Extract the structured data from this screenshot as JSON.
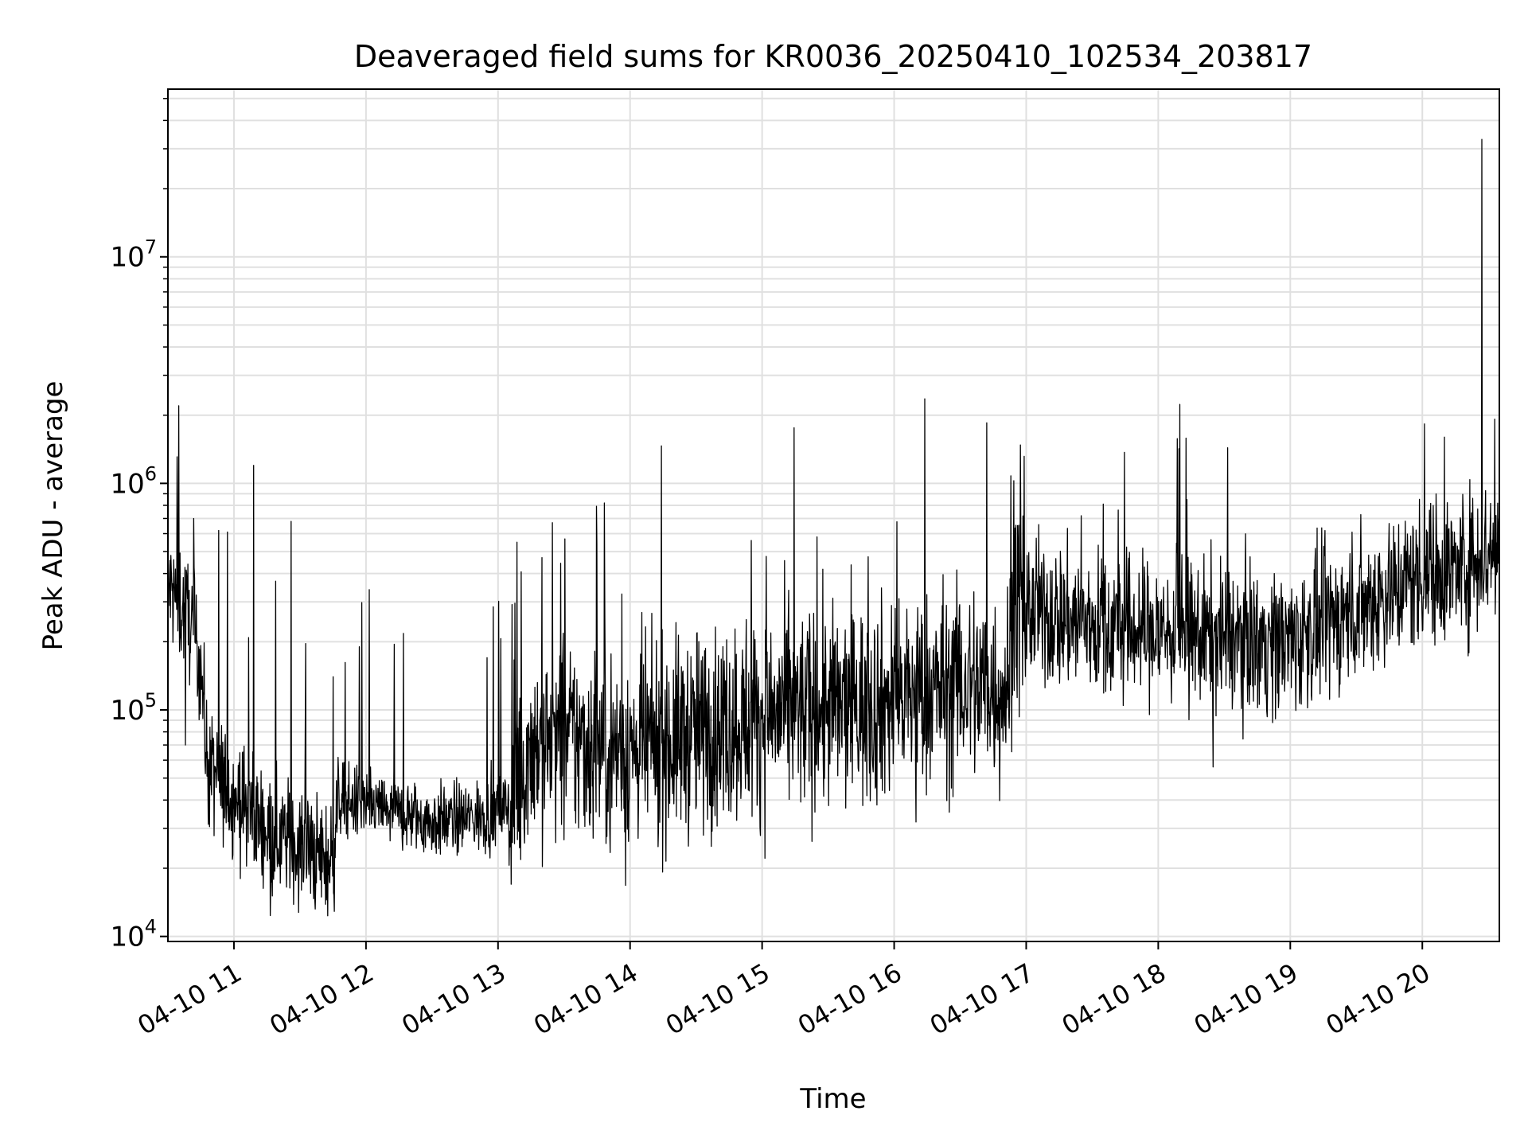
{
  "chart_data": {
    "type": "line",
    "title": "Deaveraged field sums for KR0036_20250410_102534_203817",
    "xlabel": "Time",
    "ylabel": "Peak ADU - average",
    "x_range": [
      "2025-04-10T10:30",
      "2025-04-10T20:35"
    ],
    "ylim": [
      9500,
      55000000
    ],
    "y_scale": "log",
    "grid": true,
    "legend": "none",
    "line_color": "#000000",
    "grid_color": "#e0e0e0",
    "x_ticks": [
      {
        "t": "2025-04-10T11:00",
        "label": "04-10 11"
      },
      {
        "t": "2025-04-10T12:00",
        "label": "04-10 12"
      },
      {
        "t": "2025-04-10T13:00",
        "label": "04-10 13"
      },
      {
        "t": "2025-04-10T14:00",
        "label": "04-10 14"
      },
      {
        "t": "2025-04-10T15:00",
        "label": "04-10 15"
      },
      {
        "t": "2025-04-10T16:00",
        "label": "04-10 16"
      },
      {
        "t": "2025-04-10T17:00",
        "label": "04-10 17"
      },
      {
        "t": "2025-04-10T18:00",
        "label": "04-10 18"
      },
      {
        "t": "2025-04-10T19:00",
        "label": "04-10 19"
      },
      {
        "t": "2025-04-10T20:00",
        "label": "04-10 20"
      }
    ],
    "y_ticks": [
      {
        "value": 10000,
        "base": "10",
        "exp": "4"
      },
      {
        "value": 100000,
        "base": "10",
        "exp": "5"
      },
      {
        "value": 1000000,
        "base": "10",
        "exp": "6"
      },
      {
        "value": 10000000,
        "base": "10",
        "exp": "7"
      }
    ],
    "series": [
      {
        "trend": [
          [
            "2025-04-10T10:30",
            350000
          ],
          [
            "2025-04-10T10:40",
            250000
          ],
          [
            "2025-04-10T10:45",
            160000
          ],
          [
            "2025-04-10T10:48",
            55000
          ],
          [
            "2025-04-10T11:00",
            42000
          ],
          [
            "2025-04-10T11:15",
            30000
          ],
          [
            "2025-04-10T11:30",
            25000
          ],
          [
            "2025-04-10T11:45",
            21000
          ],
          [
            "2025-04-10T11:47",
            40000
          ],
          [
            "2025-04-10T12:00",
            38000
          ],
          [
            "2025-04-10T12:30",
            32000
          ],
          [
            "2025-04-10T12:55",
            34000
          ],
          [
            "2025-04-10T13:05",
            38000
          ],
          [
            "2025-04-10T13:15",
            70000
          ],
          [
            "2025-04-10T13:30",
            75000
          ],
          [
            "2025-04-10T14:00",
            65000
          ],
          [
            "2025-04-10T14:30",
            80000
          ],
          [
            "2025-04-10T15:00",
            95000
          ],
          [
            "2025-04-10T15:30",
            100000
          ],
          [
            "2025-04-10T16:00",
            110000
          ],
          [
            "2025-04-10T16:30",
            130000
          ],
          [
            "2025-04-10T16:52",
            125000
          ],
          [
            "2025-04-10T16:54",
            280000
          ],
          [
            "2025-04-10T17:30",
            240000
          ],
          [
            "2025-04-10T18:00",
            220000
          ],
          [
            "2025-04-10T18:30",
            210000
          ],
          [
            "2025-04-10T19:00",
            200000
          ],
          [
            "2025-04-10T19:30",
            280000
          ],
          [
            "2025-04-10T20:00",
            400000
          ],
          [
            "2025-04-10T20:15",
            420000
          ],
          [
            "2025-04-10T20:35",
            520000
          ]
        ],
        "spikes": [
          [
            "2025-04-10T10:35",
            2200000
          ],
          [
            "2025-04-10T10:53",
            620000
          ],
          [
            "2025-04-10T10:57",
            610000
          ],
          [
            "2025-04-10T11:09",
            1200000
          ],
          [
            "2025-04-10T11:19",
            370000
          ],
          [
            "2025-04-10T11:26",
            680000
          ],
          [
            "2025-04-10T11:45",
            140000
          ],
          [
            "2025-04-10T11:57",
            190000
          ],
          [
            "2025-04-10T12:55",
            170000
          ],
          [
            "2025-04-10T13:20",
            470000
          ],
          [
            "2025-04-10T13:45",
            540000
          ],
          [
            "2025-04-10T14:55",
            560000
          ],
          [
            "2025-04-10T15:25",
            580000
          ],
          [
            "2025-04-10T16:42",
            1850000
          ],
          [
            "2025-04-10T16:53",
            1080000
          ],
          [
            "2025-04-10T17:25",
            720000
          ],
          [
            "2025-04-10T20:01",
            1830000
          ],
          [
            "2025-04-10T20:10",
            1600000
          ],
          [
            "2025-04-10T20:27",
            33000000
          ],
          [
            "2025-04-10T20:33",
            1920000
          ]
        ],
        "dips": [
          [
            "2025-04-10T10:38",
            70000
          ],
          [
            "2025-04-10T11:42",
            14500
          ],
          [
            "2025-04-10T13:06",
            17000
          ],
          [
            "2025-04-10T13:58",
            16800
          ],
          [
            "2025-04-10T16:10",
            32000
          ],
          [
            "2025-04-10T18:25",
            56000
          ]
        ]
      }
    ]
  }
}
